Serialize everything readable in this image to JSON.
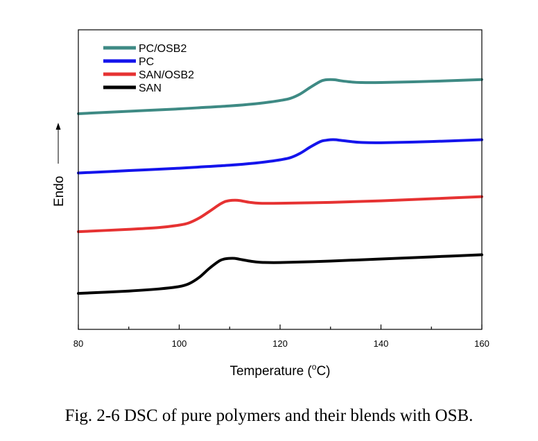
{
  "chart_data": {
    "type": "line",
    "xlabel": "Temperature (",
    "xlabel_unit": "o",
    "xlabel_end": "C)",
    "ylabel": "Endo",
    "ylabel_arrow": "increasing upward",
    "xlim": [
      80,
      160
    ],
    "x_ticks": [
      "80",
      "100",
      "120",
      "140",
      "160"
    ],
    "y_ticks": [],
    "grid": false,
    "legend_position": "top-left",
    "series": [
      {
        "name": "PC/OSB2",
        "color": "#3e8a84",
        "x": [
          80,
          90,
          100,
          105,
          110,
          115,
          118,
          120,
          122,
          124,
          126,
          128,
          129,
          130,
          131,
          132,
          134,
          136,
          140,
          150,
          160
        ],
        "y": [
          72.0,
          72.8,
          73.6,
          74.1,
          74.6,
          75.3,
          75.9,
          76.4,
          77.1,
          78.6,
          80.8,
          82.8,
          83.3,
          83.4,
          83.3,
          83.0,
          82.6,
          82.4,
          82.4,
          82.8,
          83.4
        ]
      },
      {
        "name": "PC",
        "color": "#1414ec",
        "x": [
          80,
          90,
          100,
          105,
          110,
          115,
          118,
          120,
          122,
          124,
          126,
          128,
          129,
          130,
          131,
          132,
          134,
          136,
          140,
          150,
          160
        ],
        "y": [
          52.2,
          53.0,
          53.8,
          54.3,
          54.8,
          55.5,
          56.1,
          56.6,
          57.3,
          58.8,
          60.9,
          62.7,
          63.1,
          63.3,
          63.3,
          63.1,
          62.7,
          62.4,
          62.3,
          62.7,
          63.3
        ]
      },
      {
        "name": "SAN/OSB2",
        "color": "#e63232",
        "x": [
          80,
          90,
          96,
          100,
          102,
          104,
          106,
          108,
          109,
          110,
          111,
          112,
          114,
          116,
          120,
          130,
          140,
          150,
          160
        ],
        "y": [
          32.6,
          33.4,
          34.0,
          34.8,
          35.6,
          37.2,
          39.4,
          41.7,
          42.6,
          43.0,
          43.1,
          43.0,
          42.4,
          42.1,
          42.1,
          42.4,
          42.9,
          43.6,
          44.3
        ]
      },
      {
        "name": "SAN",
        "color": "#000000",
        "x": [
          80,
          90,
          96,
          100,
          102,
          104,
          106,
          108,
          109,
          110,
          111,
          112,
          114,
          116,
          120,
          130,
          140,
          150,
          160
        ],
        "y": [
          12.0,
          12.8,
          13.5,
          14.3,
          15.3,
          17.4,
          20.4,
          22.9,
          23.5,
          23.7,
          23.7,
          23.4,
          22.8,
          22.4,
          22.3,
          22.8,
          23.5,
          24.2,
          24.9
        ]
      }
    ]
  },
  "caption": "Fig. 2-6 DSC of pure polymers and their blends with OSB."
}
